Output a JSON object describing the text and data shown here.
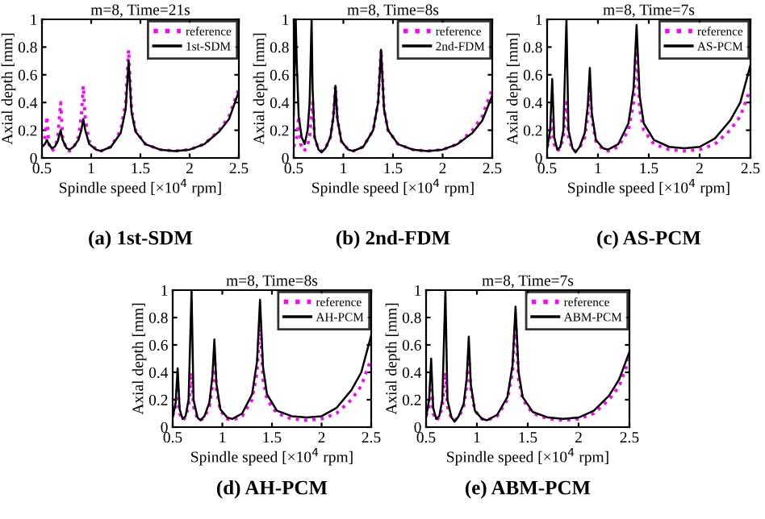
{
  "chart_data": [
    {
      "type": "line",
      "title": "m=8, Time=21s",
      "xlabel": "Spindle speed [×10$^{4}$ rpm]",
      "ylabel": "Axial depth [mm]",
      "annotations": [
        "(a) 1st-SDM"
      ],
      "xlim": [
        0.5,
        2.5
      ],
      "xticks": [
        0.5,
        1,
        1.5,
        2,
        2.5
      ],
      "ylim": [
        0,
        1
      ],
      "yticks": [
        0,
        0.2,
        0.4,
        0.6,
        0.8,
        1
      ],
      "legend": "top right",
      "grid": false,
      "series": [
        {
          "name": "reference",
          "color": "#ff00ff",
          "line_style": "dotted",
          "x": [
            0.5,
            0.53,
            0.55,
            0.57,
            0.6,
            0.63,
            0.66,
            0.69,
            0.71,
            0.75,
            0.78,
            0.82,
            0.87,
            0.9,
            0.92,
            0.94,
            0.98,
            1.05,
            1.1,
            1.2,
            1.3,
            1.35,
            1.38,
            1.41,
            1.45,
            1.55,
            1.7,
            1.85,
            2.0,
            2.15,
            2.3,
            2.4,
            2.5
          ],
          "values": [
            0.08,
            0.15,
            0.3,
            0.1,
            0.05,
            0.07,
            0.15,
            0.4,
            0.15,
            0.06,
            0.05,
            0.07,
            0.15,
            0.3,
            0.52,
            0.28,
            0.12,
            0.06,
            0.05,
            0.08,
            0.2,
            0.4,
            0.78,
            0.35,
            0.2,
            0.1,
            0.06,
            0.05,
            0.06,
            0.1,
            0.2,
            0.3,
            0.5
          ]
        },
        {
          "name": "1st-SDM",
          "color": "#000000",
          "line_style": "solid",
          "x": [
            0.5,
            0.53,
            0.55,
            0.57,
            0.6,
            0.63,
            0.66,
            0.69,
            0.71,
            0.75,
            0.78,
            0.82,
            0.87,
            0.9,
            0.92,
            0.94,
            0.98,
            1.05,
            1.1,
            1.2,
            1.3,
            1.35,
            1.38,
            1.41,
            1.45,
            1.55,
            1.7,
            1.85,
            2.0,
            2.15,
            2.3,
            2.4,
            2.5
          ],
          "values": [
            0.08,
            0.1,
            0.13,
            0.1,
            0.07,
            0.08,
            0.12,
            0.2,
            0.13,
            0.07,
            0.06,
            0.08,
            0.13,
            0.2,
            0.28,
            0.2,
            0.1,
            0.06,
            0.05,
            0.08,
            0.18,
            0.35,
            0.7,
            0.33,
            0.19,
            0.1,
            0.06,
            0.05,
            0.06,
            0.1,
            0.19,
            0.28,
            0.48
          ]
        }
      ]
    },
    {
      "type": "line",
      "title": "m=8, Time=8s",
      "xlabel": "Spindle speed [×10$^{4}$ rpm]",
      "ylabel": "Axial depth [mm]",
      "annotations": [
        "(b) 2nd-FDM"
      ],
      "xlim": [
        0.5,
        2.5
      ],
      "xticks": [
        0.5,
        1,
        1.5,
        2,
        2.5
      ],
      "ylim": [
        0,
        1
      ],
      "yticks": [
        0,
        0.2,
        0.4,
        0.6,
        0.8,
        1
      ],
      "legend": "top right",
      "grid": false,
      "series": [
        {
          "name": "reference",
          "color": "#ff00ff",
          "line_style": "dotted",
          "x": [
            0.5,
            0.53,
            0.55,
            0.57,
            0.6,
            0.63,
            0.66,
            0.69,
            0.71,
            0.75,
            0.78,
            0.82,
            0.87,
            0.9,
            0.92,
            0.94,
            0.98,
            1.05,
            1.1,
            1.2,
            1.3,
            1.35,
            1.38,
            1.41,
            1.45,
            1.55,
            1.7,
            1.85,
            2.0,
            2.15,
            2.3,
            2.4,
            2.5
          ],
          "values": [
            0.08,
            0.15,
            0.3,
            0.1,
            0.05,
            0.07,
            0.15,
            0.4,
            0.15,
            0.06,
            0.05,
            0.07,
            0.15,
            0.3,
            0.52,
            0.28,
            0.12,
            0.06,
            0.05,
            0.08,
            0.2,
            0.4,
            0.78,
            0.35,
            0.2,
            0.1,
            0.06,
            0.05,
            0.06,
            0.1,
            0.2,
            0.3,
            0.5
          ]
        },
        {
          "name": "2nd-FDM",
          "color": "#000000",
          "line_style": "solid",
          "x": [
            0.5,
            0.51,
            0.52,
            0.53,
            0.55,
            0.58,
            0.61,
            0.64,
            0.66,
            0.67,
            0.68,
            0.69,
            0.71,
            0.75,
            0.78,
            0.82,
            0.87,
            0.9,
            0.92,
            0.94,
            0.98,
            1.05,
            1.1,
            1.2,
            1.3,
            1.35,
            1.38,
            1.41,
            1.45,
            1.55,
            1.7,
            1.85,
            2.0,
            2.15,
            2.3,
            2.4,
            2.5
          ],
          "values": [
            0.3,
            0.7,
            1.0,
            0.7,
            0.3,
            0.15,
            0.1,
            0.2,
            0.4,
            0.7,
            1.0,
            0.5,
            0.15,
            0.06,
            0.04,
            0.07,
            0.15,
            0.3,
            0.52,
            0.28,
            0.12,
            0.06,
            0.05,
            0.08,
            0.2,
            0.4,
            0.78,
            0.35,
            0.2,
            0.1,
            0.06,
            0.05,
            0.06,
            0.1,
            0.18,
            0.27,
            0.45
          ]
        }
      ]
    },
    {
      "type": "line",
      "title": "m=8, Time=7s",
      "xlabel": "Spindle speed [×10$^{4}$ rpm]",
      "ylabel": "Axial depth [mm]",
      "annotations": [
        "(c) AS-PCM"
      ],
      "xlim": [
        0.5,
        2.5
      ],
      "xticks": [
        0.5,
        1,
        1.5,
        2,
        2.5
      ],
      "ylim": [
        0,
        1
      ],
      "yticks": [
        0,
        0.2,
        0.4,
        0.6,
        0.8,
        1
      ],
      "legend": "top right",
      "grid": false,
      "series": [
        {
          "name": "reference",
          "color": "#ff00ff",
          "line_style": "dotted",
          "x": [
            0.5,
            0.53,
            0.55,
            0.57,
            0.6,
            0.63,
            0.66,
            0.69,
            0.71,
            0.75,
            0.78,
            0.82,
            0.87,
            0.9,
            0.92,
            0.94,
            0.98,
            1.05,
            1.1,
            1.2,
            1.3,
            1.35,
            1.38,
            1.41,
            1.45,
            1.55,
            1.7,
            1.85,
            2.0,
            2.15,
            2.3,
            2.4,
            2.5
          ],
          "values": [
            0.08,
            0.15,
            0.3,
            0.1,
            0.05,
            0.07,
            0.15,
            0.4,
            0.15,
            0.06,
            0.05,
            0.07,
            0.15,
            0.3,
            0.52,
            0.28,
            0.12,
            0.06,
            0.05,
            0.08,
            0.2,
            0.4,
            0.78,
            0.35,
            0.2,
            0.1,
            0.06,
            0.05,
            0.06,
            0.1,
            0.2,
            0.3,
            0.5
          ]
        },
        {
          "name": "AS-PCM",
          "color": "#000000",
          "line_style": "solid",
          "x": [
            0.5,
            0.53,
            0.55,
            0.57,
            0.6,
            0.63,
            0.66,
            0.69,
            0.71,
            0.75,
            0.78,
            0.82,
            0.87,
            0.9,
            0.92,
            0.94,
            0.98,
            1.05,
            1.1,
            1.2,
            1.3,
            1.35,
            1.38,
            1.41,
            1.45,
            1.55,
            1.7,
            1.85,
            2.0,
            2.15,
            2.3,
            2.4,
            2.5
          ],
          "values": [
            0.07,
            0.2,
            0.57,
            0.15,
            0.06,
            0.08,
            0.2,
            1.0,
            0.2,
            0.07,
            0.04,
            0.08,
            0.18,
            0.38,
            0.65,
            0.32,
            0.13,
            0.07,
            0.06,
            0.1,
            0.25,
            0.5,
            0.96,
            0.45,
            0.25,
            0.13,
            0.08,
            0.07,
            0.08,
            0.14,
            0.27,
            0.4,
            0.67
          ]
        }
      ]
    },
    {
      "type": "line",
      "title": "m=8, Time=8s",
      "xlabel": "Spindle speed [×10$^{4}$ rpm]",
      "ylabel": "Axial depth [mm]",
      "annotations": [
        "(d) AH-PCM"
      ],
      "xlim": [
        0.5,
        2.5
      ],
      "xticks": [
        0.5,
        1,
        1.5,
        2,
        2.5
      ],
      "ylim": [
        0,
        1
      ],
      "yticks": [
        0,
        0.2,
        0.4,
        0.6,
        0.8,
        1
      ],
      "legend": "top right",
      "grid": false,
      "series": [
        {
          "name": "reference",
          "color": "#ff00ff",
          "line_style": "dotted",
          "x": [
            0.5,
            0.53,
            0.55,
            0.57,
            0.6,
            0.63,
            0.66,
            0.69,
            0.71,
            0.75,
            0.78,
            0.82,
            0.87,
            0.9,
            0.92,
            0.94,
            0.98,
            1.05,
            1.1,
            1.2,
            1.3,
            1.35,
            1.38,
            1.41,
            1.45,
            1.55,
            1.7,
            1.85,
            2.0,
            2.15,
            2.3,
            2.4,
            2.5
          ],
          "values": [
            0.08,
            0.15,
            0.3,
            0.1,
            0.05,
            0.07,
            0.15,
            0.4,
            0.15,
            0.06,
            0.05,
            0.07,
            0.15,
            0.3,
            0.52,
            0.28,
            0.12,
            0.06,
            0.05,
            0.08,
            0.2,
            0.4,
            0.78,
            0.35,
            0.2,
            0.1,
            0.06,
            0.05,
            0.06,
            0.1,
            0.2,
            0.3,
            0.5
          ]
        },
        {
          "name": "AH-PCM",
          "color": "#000000",
          "line_style": "solid",
          "x": [
            0.5,
            0.53,
            0.55,
            0.57,
            0.6,
            0.63,
            0.66,
            0.69,
            0.71,
            0.75,
            0.78,
            0.82,
            0.87,
            0.9,
            0.92,
            0.94,
            0.98,
            1.05,
            1.1,
            1.2,
            1.3,
            1.35,
            1.38,
            1.41,
            1.45,
            1.55,
            1.7,
            1.85,
            2.0,
            2.15,
            2.3,
            2.4,
            2.5
          ],
          "values": [
            0.07,
            0.18,
            0.43,
            0.13,
            0.06,
            0.08,
            0.2,
            1.0,
            0.2,
            0.07,
            0.05,
            0.08,
            0.18,
            0.37,
            0.64,
            0.32,
            0.13,
            0.07,
            0.06,
            0.1,
            0.24,
            0.48,
            0.93,
            0.44,
            0.24,
            0.12,
            0.08,
            0.07,
            0.08,
            0.14,
            0.27,
            0.4,
            0.67
          ]
        }
      ]
    },
    {
      "type": "line",
      "title": "m=8, Time=7s",
      "xlabel": "Spindle speed [×10$^{4}$ rpm]",
      "ylabel": "Axial depth [mm]",
      "annotations": [
        "(e) ABM-PCM"
      ],
      "xlim": [
        0.5,
        2.5
      ],
      "xticks": [
        0.5,
        1,
        1.5,
        2,
        2.5
      ],
      "ylim": [
        0,
        1
      ],
      "yticks": [
        0,
        0.2,
        0.4,
        0.6,
        0.8,
        1
      ],
      "legend": "top right",
      "grid": false,
      "series": [
        {
          "name": "reference",
          "color": "#ff00ff",
          "line_style": "dotted",
          "x": [
            0.5,
            0.53,
            0.55,
            0.57,
            0.6,
            0.63,
            0.66,
            0.69,
            0.71,
            0.75,
            0.78,
            0.82,
            0.87,
            0.9,
            0.92,
            0.94,
            0.98,
            1.05,
            1.1,
            1.2,
            1.3,
            1.35,
            1.38,
            1.41,
            1.45,
            1.55,
            1.7,
            1.85,
            2.0,
            2.15,
            2.3,
            2.4,
            2.5
          ],
          "values": [
            0.08,
            0.15,
            0.3,
            0.1,
            0.05,
            0.07,
            0.15,
            0.4,
            0.15,
            0.06,
            0.05,
            0.07,
            0.15,
            0.3,
            0.52,
            0.28,
            0.12,
            0.06,
            0.05,
            0.08,
            0.2,
            0.4,
            0.78,
            0.35,
            0.2,
            0.1,
            0.06,
            0.05,
            0.06,
            0.1,
            0.2,
            0.3,
            0.5
          ]
        },
        {
          "name": "ABM-PCM",
          "color": "#000000",
          "line_style": "solid",
          "x": [
            0.5,
            0.53,
            0.55,
            0.57,
            0.6,
            0.63,
            0.66,
            0.69,
            0.71,
            0.75,
            0.78,
            0.82,
            0.87,
            0.9,
            0.92,
            0.94,
            0.98,
            1.05,
            1.1,
            1.2,
            1.3,
            1.35,
            1.38,
            1.41,
            1.45,
            1.55,
            1.7,
            1.85,
            2.0,
            2.15,
            2.3,
            2.4,
            2.5
          ],
          "values": [
            0.07,
            0.2,
            0.5,
            0.14,
            0.06,
            0.08,
            0.2,
            1.0,
            0.2,
            0.07,
            0.04,
            0.08,
            0.17,
            0.36,
            0.66,
            0.31,
            0.12,
            0.06,
            0.05,
            0.09,
            0.22,
            0.45,
            0.88,
            0.4,
            0.22,
            0.11,
            0.07,
            0.06,
            0.07,
            0.12,
            0.23,
            0.35,
            0.55
          ]
        }
      ]
    }
  ]
}
